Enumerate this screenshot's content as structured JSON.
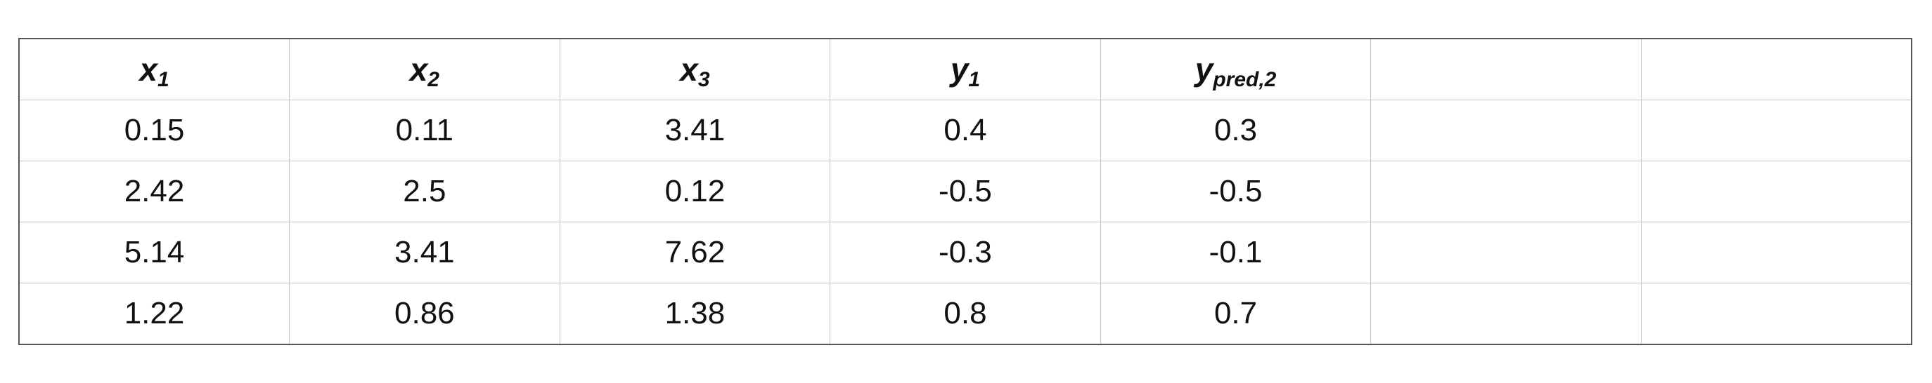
{
  "chart_data": {
    "type": "table",
    "columns": [
      {
        "base": "x",
        "sub": "1"
      },
      {
        "base": "x",
        "sub": "2"
      },
      {
        "base": "x",
        "sub": "3"
      },
      {
        "base": "y",
        "sub": "1"
      },
      {
        "base": "y",
        "sub": "pred,2"
      },
      {
        "base": "",
        "sub": ""
      },
      {
        "base": "",
        "sub": ""
      }
    ],
    "rows": [
      [
        "0.15",
        "0.11",
        "3.41",
        "0.4",
        "0.3",
        "",
        ""
      ],
      [
        "2.42",
        "2.5",
        "0.12",
        "-0.5",
        "-0.5",
        "",
        ""
      ],
      [
        "5.14",
        "3.41",
        "7.62",
        "-0.3",
        "-0.1",
        "",
        ""
      ],
      [
        "1.22",
        "0.86",
        "1.38",
        "0.8",
        "0.7",
        "",
        ""
      ]
    ]
  }
}
